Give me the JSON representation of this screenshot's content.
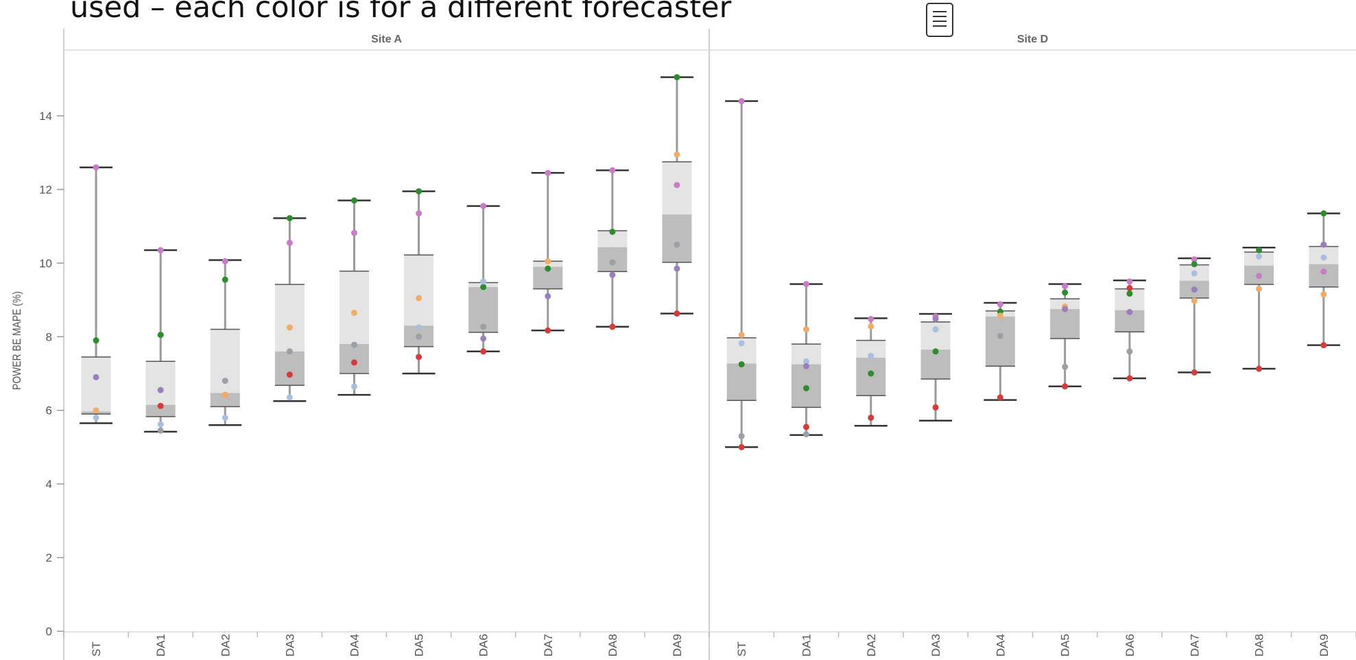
{
  "header": {
    "caption": "used – each color is for a different forecaster"
  },
  "chart_data": {
    "type": "box",
    "ylabel": "POWER BE MAPE (%)",
    "ylim": [
      0,
      16
    ],
    "yticks": [
      0,
      2,
      4,
      6,
      8,
      10,
      12,
      14
    ],
    "categories": [
      "ST",
      "DA1",
      "DA2",
      "DA3",
      "DA4",
      "DA5",
      "DA6",
      "DA7",
      "DA8",
      "DA9"
    ],
    "forecaster_colors": [
      "#2e8b2e",
      "#c97bc9",
      "#f0ad6a",
      "#a9bfe0",
      "#d63b3b",
      "#9b7fbd",
      "#9aa0a6"
    ],
    "panels": [
      {
        "title": "Site A",
        "boxes": [
          {
            "min": 5.65,
            "q1": 5.9,
            "median": 5.97,
            "q3": 7.45,
            "max": 12.6,
            "points": [
              [
                0,
                7.9
              ],
              [
                1,
                12.6
              ],
              [
                2,
                6.0
              ],
              [
                3,
                5.8
              ],
              [
                5,
                6.9
              ]
            ]
          },
          {
            "min": 5.42,
            "q1": 5.83,
            "median": 6.15,
            "q3": 7.33,
            "max": 10.35,
            "points": [
              [
                0,
                8.05
              ],
              [
                1,
                10.35
              ],
              [
                4,
                6.12
              ],
              [
                3,
                5.62
              ],
              [
                5,
                6.55
              ],
              [
                6,
                5.45
              ]
            ]
          },
          {
            "min": 5.6,
            "q1": 6.1,
            "median": 6.47,
            "q3": 8.2,
            "max": 10.08,
            "points": [
              [
                0,
                9.55
              ],
              [
                1,
                10.05
              ],
              [
                4,
                6.42
              ],
              [
                2,
                6.42
              ],
              [
                3,
                5.8
              ],
              [
                6,
                6.8
              ]
            ]
          },
          {
            "min": 6.25,
            "q1": 6.68,
            "median": 7.6,
            "q3": 9.42,
            "max": 11.22,
            "points": [
              [
                0,
                11.22
              ],
              [
                1,
                10.55
              ],
              [
                2,
                8.25
              ],
              [
                4,
                6.97
              ],
              [
                3,
                6.35
              ],
              [
                6,
                7.6
              ]
            ]
          },
          {
            "min": 6.42,
            "q1": 7.0,
            "median": 7.8,
            "q3": 9.78,
            "max": 11.7,
            "points": [
              [
                0,
                11.7
              ],
              [
                1,
                10.82
              ],
              [
                2,
                8.65
              ],
              [
                4,
                7.3
              ],
              [
                3,
                6.65
              ],
              [
                6,
                7.78
              ]
            ]
          },
          {
            "min": 7.0,
            "q1": 7.73,
            "median": 8.3,
            "q3": 10.22,
            "max": 11.95,
            "points": [
              [
                0,
                11.95
              ],
              [
                1,
                11.35
              ],
              [
                2,
                9.05
              ],
              [
                3,
                8.25
              ],
              [
                4,
                7.45
              ],
              [
                6,
                8.0
              ]
            ]
          },
          {
            "min": 7.6,
            "q1": 8.12,
            "median": 9.35,
            "q3": 9.47,
            "max": 11.55,
            "points": [
              [
                1,
                11.55
              ],
              [
                0,
                9.35
              ],
              [
                3,
                9.5
              ],
              [
                6,
                8.27
              ],
              [
                4,
                7.6
              ],
              [
                5,
                7.95
              ]
            ]
          },
          {
            "min": 8.17,
            "q1": 9.3,
            "median": 9.9,
            "q3": 10.05,
            "max": 12.45,
            "points": [
              [
                1,
                12.45
              ],
              [
                2,
                10.05
              ],
              [
                0,
                9.85
              ],
              [
                5,
                9.1
              ],
              [
                4,
                8.17
              ]
            ]
          },
          {
            "min": 8.27,
            "q1": 9.77,
            "median": 10.43,
            "q3": 10.88,
            "max": 12.52,
            "points": [
              [
                1,
                12.52
              ],
              [
                0,
                10.85
              ],
              [
                6,
                10.02
              ],
              [
                5,
                9.68
              ],
              [
                4,
                8.27
              ]
            ]
          },
          {
            "min": 8.63,
            "q1": 10.02,
            "median": 11.32,
            "q3": 12.75,
            "max": 15.05,
            "points": [
              [
                0,
                15.05
              ],
              [
                2,
                12.95
              ],
              [
                1,
                12.12
              ],
              [
                6,
                10.5
              ],
              [
                5,
                9.85
              ],
              [
                4,
                8.63
              ]
            ]
          }
        ]
      },
      {
        "title": "Site D",
        "boxes": [
          {
            "min": 5.0,
            "q1": 6.27,
            "median": 7.27,
            "q3": 7.97,
            "max": 14.4,
            "points": [
              [
                1,
                14.4
              ],
              [
                2,
                8.05
              ],
              [
                3,
                7.82
              ],
              [
                0,
                7.25
              ],
              [
                6,
                5.3
              ],
              [
                4,
                5.0
              ]
            ]
          },
          {
            "min": 5.33,
            "q1": 6.08,
            "median": 7.25,
            "q3": 7.8,
            "max": 9.43,
            "points": [
              [
                1,
                9.43
              ],
              [
                2,
                8.2
              ],
              [
                3,
                7.33
              ],
              [
                5,
                7.2
              ],
              [
                0,
                6.6
              ],
              [
                4,
                5.55
              ],
              [
                6,
                5.35
              ]
            ]
          },
          {
            "min": 5.58,
            "q1": 6.4,
            "median": 7.43,
            "q3": 7.9,
            "max": 8.5,
            "points": [
              [
                1,
                8.48
              ],
              [
                2,
                8.28
              ],
              [
                3,
                7.48
              ],
              [
                0,
                7.0
              ],
              [
                4,
                5.8
              ]
            ]
          },
          {
            "min": 5.72,
            "q1": 6.85,
            "median": 7.65,
            "q3": 8.4,
            "max": 8.62,
            "points": [
              [
                1,
                8.55
              ],
              [
                5,
                8.48
              ],
              [
                3,
                8.2
              ],
              [
                0,
                7.6
              ],
              [
                4,
                6.08
              ]
            ]
          },
          {
            "min": 6.28,
            "q1": 7.2,
            "median": 8.55,
            "q3": 8.7,
            "max": 8.92,
            "points": [
              [
                1,
                8.88
              ],
              [
                0,
                8.68
              ],
              [
                2,
                8.57
              ],
              [
                6,
                8.02
              ],
              [
                4,
                6.35
              ]
            ]
          },
          {
            "min": 6.65,
            "q1": 7.95,
            "median": 8.75,
            "q3": 9.03,
            "max": 9.43,
            "points": [
              [
                1,
                9.37
              ],
              [
                0,
                9.2
              ],
              [
                2,
                8.82
              ],
              [
                5,
                8.75
              ],
              [
                6,
                7.18
              ],
              [
                4,
                6.65
              ]
            ]
          },
          {
            "min": 6.87,
            "q1": 8.13,
            "median": 8.72,
            "q3": 9.3,
            "max": 9.53,
            "points": [
              [
                1,
                9.5
              ],
              [
                4,
                9.32
              ],
              [
                0,
                9.17
              ],
              [
                5,
                8.67
              ],
              [
                6,
                7.6
              ],
              [
                4,
                6.87
              ]
            ]
          },
          {
            "min": 7.03,
            "q1": 9.05,
            "median": 9.52,
            "q3": 9.95,
            "max": 10.13,
            "points": [
              [
                1,
                10.1
              ],
              [
                0,
                9.97
              ],
              [
                3,
                9.72
              ],
              [
                5,
                9.28
              ],
              [
                2,
                8.98
              ],
              [
                4,
                7.03
              ]
            ]
          },
          {
            "min": 7.13,
            "q1": 9.42,
            "median": 9.93,
            "q3": 10.3,
            "max": 10.42,
            "points": [
              [
                0,
                10.35
              ],
              [
                3,
                10.18
              ],
              [
                1,
                9.65
              ],
              [
                2,
                9.3
              ],
              [
                4,
                7.13
              ]
            ]
          },
          {
            "min": 7.77,
            "q1": 9.35,
            "median": 9.97,
            "q3": 10.45,
            "max": 11.35,
            "points": [
              [
                0,
                11.35
              ],
              [
                5,
                10.5
              ],
              [
                3,
                10.15
              ],
              [
                1,
                9.77
              ],
              [
                2,
                9.15
              ],
              [
                4,
                7.77
              ]
            ]
          }
        ]
      }
    ]
  }
}
